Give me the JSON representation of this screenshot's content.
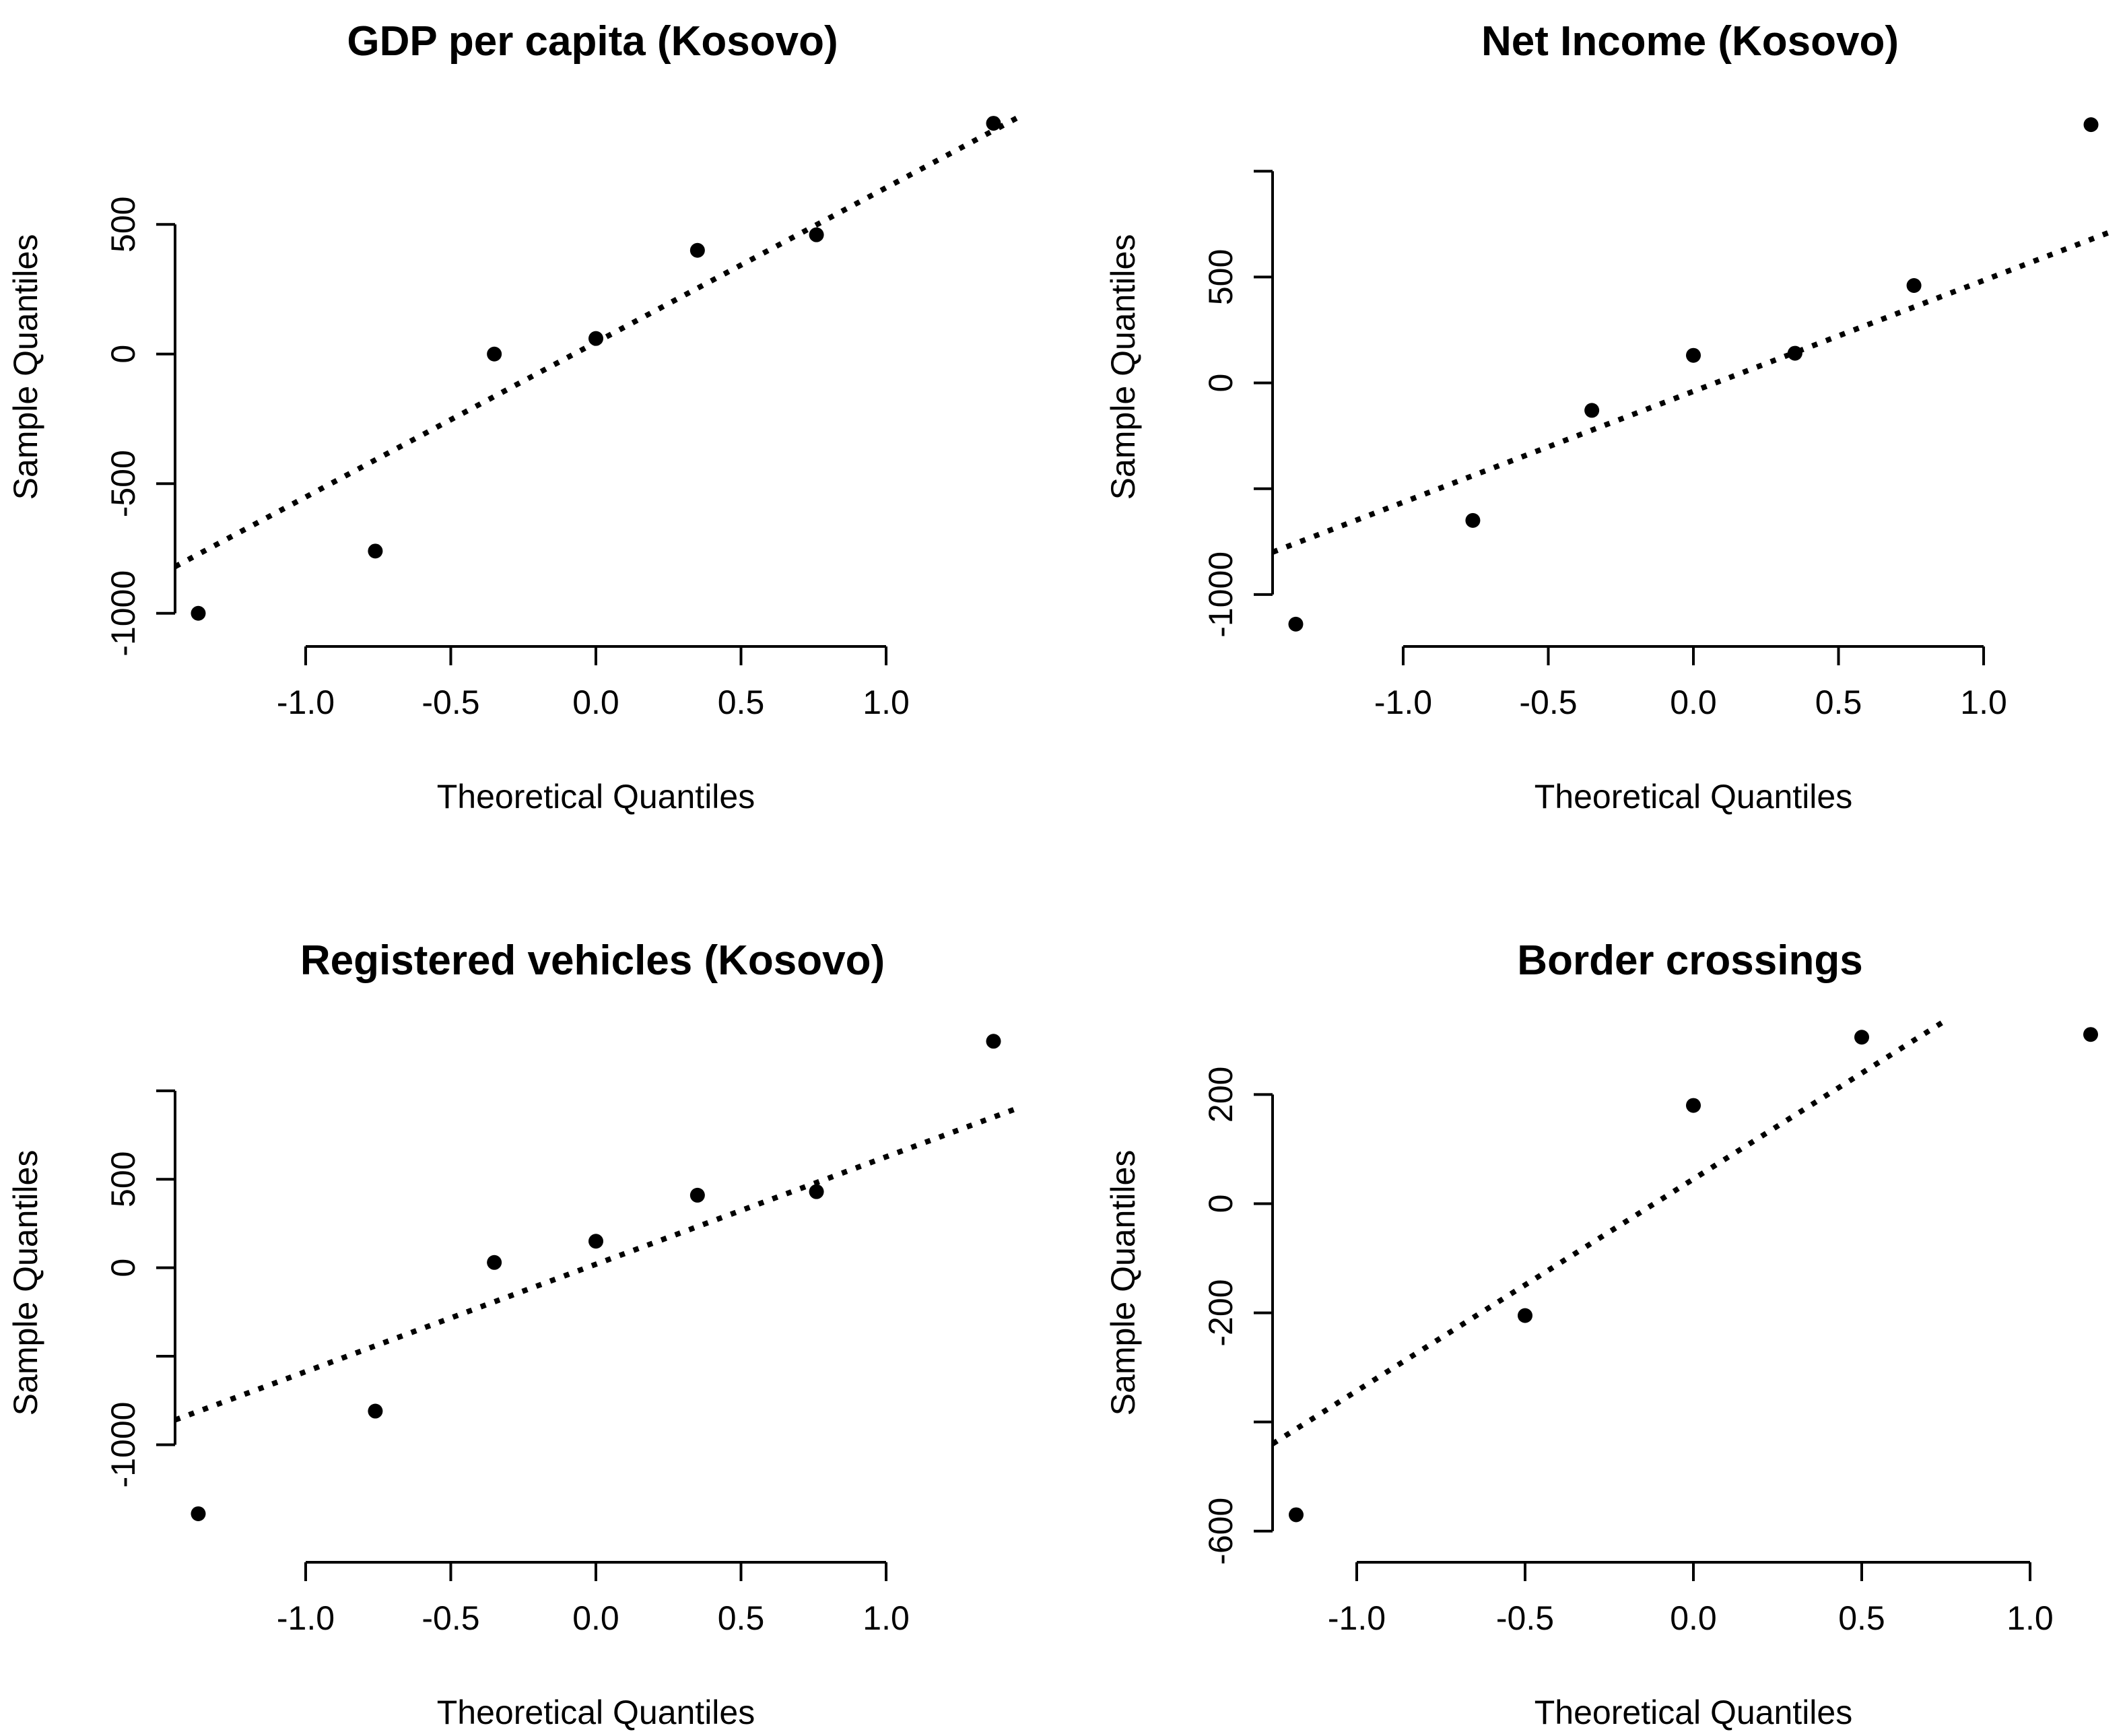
{
  "colors": {
    "background": "#ffffff",
    "ink": "#000000"
  },
  "chart_data": [
    {
      "type": "scatter",
      "title": "GDP per capita (Kosovo)",
      "xlabel": "Theoretical Quantiles",
      "ylabel": "Sample Quantiles",
      "xlim": [
        -1.45,
        1.45
      ],
      "ylim": [
        -1050,
        950
      ],
      "xticks": [
        -1.0,
        -0.5,
        0.0,
        0.5,
        1.0
      ],
      "xtick_labels": [
        "-1.0",
        "-0.5",
        "0.0",
        "0.5",
        "1.0"
      ],
      "yticks": [
        -1000,
        -500,
        0,
        500
      ],
      "ytick_labels": [
        "-1000",
        "-500",
        "0",
        "500"
      ],
      "grid": false,
      "points": {
        "x": [
          -1.37,
          -0.76,
          -0.35,
          0.0,
          0.35,
          0.76,
          1.37
        ],
        "y": [
          -1000,
          -760,
          0,
          60,
          400,
          460,
          890
        ]
      },
      "reference_line": {
        "x": [
          -1.45,
          1.45
        ],
        "y": [
          -820,
          910
        ],
        "style": "dotted"
      }
    },
    {
      "type": "scatter",
      "title": "Net Income (Kosovo)",
      "xlabel": "Theoretical Quantiles",
      "ylabel": "Sample Quantiles",
      "xlim": [
        -1.45,
        1.45
      ],
      "ylim": [
        -1150,
        1300
      ],
      "xticks": [
        -1.0,
        -0.5,
        0.0,
        0.5,
        1.0
      ],
      "xtick_labels": [
        "-1.0",
        "-0.5",
        "0.0",
        "0.5",
        "1.0"
      ],
      "yticks": [
        -1000,
        -500,
        0,
        500,
        1000
      ],
      "ytick_labels": [
        "-1000",
        "",
        "0",
        "500",
        ""
      ],
      "grid": false,
      "points": {
        "x": [
          -1.37,
          -0.76,
          -0.35,
          0.0,
          0.35,
          0.76,
          1.37
        ],
        "y": [
          -1140,
          -650,
          -130,
          130,
          140,
          460,
          1220
        ]
      },
      "reference_line": {
        "x": [
          -1.45,
          1.45
        ],
        "y": [
          -800,
          720
        ],
        "style": "dotted"
      }
    },
    {
      "type": "scatter",
      "title": "Registered vehicles (Kosovo)",
      "xlabel": "Theoretical Quantiles",
      "ylabel": "Sample Quantiles",
      "xlim": [
        -1.45,
        1.45
      ],
      "ylim": [
        -1550,
        1380
      ],
      "xticks": [
        -1.0,
        -0.5,
        0.0,
        0.5,
        1.0
      ],
      "xtick_labels": [
        "-1.0",
        "-0.5",
        "0.0",
        "0.5",
        "1.0"
      ],
      "yticks": [
        -1000,
        -500,
        0,
        500,
        1000
      ],
      "ytick_labels": [
        "-1000",
        "",
        "0",
        "500",
        ""
      ],
      "grid": false,
      "points": {
        "x": [
          -1.37,
          -0.76,
          -0.35,
          0.0,
          0.35,
          0.76,
          1.37
        ],
        "y": [
          -1390,
          -810,
          30,
          150,
          410,
          430,
          1280
        ]
      },
      "reference_line": {
        "x": [
          -1.45,
          1.45
        ],
        "y": [
          -860,
          900
        ],
        "style": "dotted"
      }
    },
    {
      "type": "scatter",
      "title": "Border crossings",
      "xlabel": "Theoretical Quantiles",
      "ylabel": "Sample Quantiles",
      "xlim": [
        -1.25,
        1.25
      ],
      "ylim": [
        -620,
        330
      ],
      "xticks": [
        -1.0,
        -0.5,
        0.0,
        0.5,
        1.0
      ],
      "xtick_labels": [
        "-1.0",
        "-0.5",
        "0.0",
        "0.5",
        "1.0"
      ],
      "yticks": [
        -600,
        -400,
        -200,
        0,
        200
      ],
      "ytick_labels": [
        "-600",
        "",
        "-200",
        "0",
        "200"
      ],
      "grid": false,
      "points": {
        "x": [
          -1.18,
          -0.5,
          0.0,
          0.5,
          1.18
        ],
        "y": [
          -570,
          -205,
          180,
          305,
          310
        ]
      },
      "reference_line": {
        "x": [
          -1.25,
          0.76
        ],
        "y": [
          -440,
          340
        ],
        "style": "dotted"
      }
    }
  ]
}
